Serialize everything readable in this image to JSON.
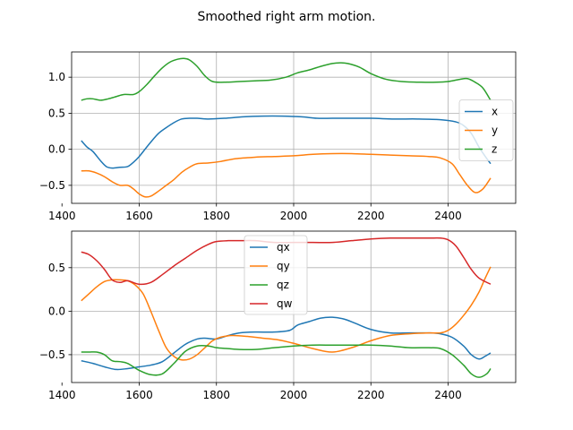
{
  "figure": {
    "title": "Smoothed right arm motion."
  },
  "chart_data": [
    {
      "type": "line",
      "title": "",
      "xlabel": "",
      "ylabel": "",
      "xlim": [
        1425,
        2575
      ],
      "ylim": [
        -0.75,
        1.35
      ],
      "xticks": [
        1400,
        1600,
        1800,
        2000,
        2200,
        2400
      ],
      "xtick_labels": [
        "1400",
        "1600",
        "1800",
        "2000",
        "2200",
        "2400"
      ],
      "yticks": [
        -0.5,
        0.0,
        0.5,
        1.0
      ],
      "ytick_labels": [
        "−0.5",
        "0.0",
        "0.5",
        "1.0"
      ],
      "grid": true,
      "legend_position": "center-right",
      "series": [
        {
          "name": "x",
          "color": "#1f77b4",
          "x": [
            1450,
            1465,
            1480,
            1500,
            1515,
            1530,
            1550,
            1570,
            1585,
            1600,
            1615,
            1630,
            1650,
            1670,
            1690,
            1710,
            1730,
            1750,
            1780,
            1820,
            1870,
            1920,
            1970,
            2020,
            2060,
            2100,
            2140,
            2200,
            2260,
            2320,
            2380,
            2420,
            2440,
            2460,
            2480,
            2495,
            2510
          ],
          "values": [
            0.12,
            0.03,
            -0.03,
            -0.16,
            -0.24,
            -0.26,
            -0.25,
            -0.24,
            -0.18,
            -0.1,
            0.0,
            0.1,
            0.22,
            0.3,
            0.37,
            0.42,
            0.43,
            0.43,
            0.42,
            0.43,
            0.45,
            0.46,
            0.46,
            0.45,
            0.43,
            0.43,
            0.43,
            0.43,
            0.42,
            0.42,
            0.41,
            0.38,
            0.33,
            0.22,
            0.03,
            -0.09,
            -0.2
          ]
        },
        {
          "name": "y",
          "color": "#ff7f0e",
          "x": [
            1450,
            1470,
            1490,
            1510,
            1530,
            1550,
            1570,
            1585,
            1600,
            1615,
            1630,
            1650,
            1670,
            1690,
            1710,
            1730,
            1750,
            1780,
            1810,
            1850,
            1900,
            1950,
            2000,
            2050,
            2100,
            2150,
            2200,
            2250,
            2300,
            2350,
            2380,
            2410,
            2430,
            2450,
            2470,
            2490,
            2510
          ],
          "values": [
            -0.3,
            -0.3,
            -0.33,
            -0.38,
            -0.45,
            -0.5,
            -0.5,
            -0.55,
            -0.62,
            -0.66,
            -0.65,
            -0.58,
            -0.5,
            -0.42,
            -0.32,
            -0.25,
            -0.2,
            -0.19,
            -0.17,
            -0.13,
            -0.11,
            -0.1,
            -0.09,
            -0.07,
            -0.06,
            -0.06,
            -0.07,
            -0.08,
            -0.09,
            -0.1,
            -0.12,
            -0.2,
            -0.35,
            -0.5,
            -0.6,
            -0.55,
            -0.4
          ]
        },
        {
          "name": "z",
          "color": "#2ca02c",
          "x": [
            1450,
            1465,
            1480,
            1500,
            1520,
            1540,
            1560,
            1585,
            1600,
            1620,
            1640,
            1660,
            1680,
            1700,
            1715,
            1730,
            1750,
            1770,
            1790,
            1820,
            1860,
            1900,
            1940,
            1980,
            2010,
            2040,
            2070,
            2100,
            2120,
            2140,
            2170,
            2200,
            2240,
            2280,
            2330,
            2370,
            2400,
            2430,
            2450,
            2470,
            2490,
            2510
          ],
          "values": [
            0.68,
            0.7,
            0.7,
            0.68,
            0.7,
            0.73,
            0.76,
            0.76,
            0.8,
            0.9,
            1.02,
            1.13,
            1.21,
            1.25,
            1.26,
            1.24,
            1.15,
            1.02,
            0.94,
            0.93,
            0.94,
            0.95,
            0.96,
            1.0,
            1.06,
            1.1,
            1.15,
            1.19,
            1.2,
            1.19,
            1.14,
            1.05,
            0.97,
            0.94,
            0.93,
            0.93,
            0.94,
            0.97,
            0.98,
            0.93,
            0.85,
            0.68
          ]
        }
      ]
    },
    {
      "type": "line",
      "title": "",
      "xlabel": "",
      "ylabel": "",
      "xlim": [
        1425,
        2575
      ],
      "ylim": [
        -0.82,
        0.92
      ],
      "xticks": [
        1400,
        1600,
        1800,
        2000,
        2200,
        2400
      ],
      "xtick_labels": [
        "1400",
        "1600",
        "1800",
        "2000",
        "2200",
        "2400"
      ],
      "yticks": [
        -0.5,
        0.0,
        0.5
      ],
      "ytick_labels": [
        "−0.5",
        "0.0",
        "0.5"
      ],
      "grid": true,
      "legend_position": "upper-center",
      "series": [
        {
          "name": "qx",
          "color": "#1f77b4",
          "x": [
            1450,
            1480,
            1510,
            1540,
            1570,
            1600,
            1630,
            1660,
            1690,
            1720,
            1750,
            1770,
            1800,
            1830,
            1860,
            1900,
            1950,
            1990,
            2010,
            2040,
            2070,
            2100,
            2130,
            2160,
            2200,
            2250,
            2300,
            2350,
            2380,
            2410,
            2440,
            2460,
            2480,
            2495,
            2510
          ],
          "values": [
            -0.57,
            -0.6,
            -0.64,
            -0.67,
            -0.66,
            -0.64,
            -0.62,
            -0.58,
            -0.48,
            -0.38,
            -0.32,
            -0.31,
            -0.32,
            -0.28,
            -0.25,
            -0.24,
            -0.24,
            -0.22,
            -0.16,
            -0.12,
            -0.08,
            -0.07,
            -0.09,
            -0.14,
            -0.21,
            -0.25,
            -0.25,
            -0.25,
            -0.26,
            -0.3,
            -0.4,
            -0.5,
            -0.55,
            -0.52,
            -0.48
          ]
        },
        {
          "name": "qy",
          "color": "#ff7f0e",
          "x": [
            1450,
            1470,
            1490,
            1510,
            1530,
            1550,
            1570,
            1590,
            1610,
            1630,
            1650,
            1670,
            1690,
            1710,
            1730,
            1750,
            1770,
            1790,
            1810,
            1840,
            1880,
            1920,
            1960,
            2000,
            2050,
            2100,
            2150,
            2200,
            2250,
            2300,
            2350,
            2380,
            2400,
            2420,
            2440,
            2460,
            2480,
            2495,
            2510
          ],
          "values": [
            0.12,
            0.2,
            0.28,
            0.34,
            0.36,
            0.36,
            0.35,
            0.3,
            0.2,
            0.0,
            -0.22,
            -0.42,
            -0.52,
            -0.56,
            -0.55,
            -0.5,
            -0.42,
            -0.34,
            -0.3,
            -0.28,
            -0.29,
            -0.31,
            -0.33,
            -0.37,
            -0.43,
            -0.47,
            -0.42,
            -0.34,
            -0.28,
            -0.26,
            -0.25,
            -0.25,
            -0.22,
            -0.15,
            -0.05,
            0.07,
            0.22,
            0.37,
            0.51
          ]
        },
        {
          "name": "qz",
          "color": "#2ca02c",
          "x": [
            1450,
            1470,
            1490,
            1510,
            1530,
            1550,
            1570,
            1600,
            1630,
            1660,
            1690,
            1720,
            1750,
            1780,
            1800,
            1830,
            1860,
            1900,
            1950,
            2000,
            2050,
            2100,
            2150,
            2200,
            2250,
            2300,
            2350,
            2380,
            2410,
            2440,
            2460,
            2480,
            2500,
            2510
          ],
          "values": [
            -0.47,
            -0.47,
            -0.47,
            -0.5,
            -0.57,
            -0.58,
            -0.6,
            -0.68,
            -0.73,
            -0.72,
            -0.6,
            -0.46,
            -0.4,
            -0.4,
            -0.42,
            -0.43,
            -0.44,
            -0.44,
            -0.42,
            -0.4,
            -0.39,
            -0.39,
            -0.39,
            -0.39,
            -0.4,
            -0.42,
            -0.42,
            -0.43,
            -0.5,
            -0.62,
            -0.72,
            -0.76,
            -0.72,
            -0.66
          ]
        },
        {
          "name": "qw",
          "color": "#d62728",
          "x": [
            1450,
            1470,
            1490,
            1510,
            1530,
            1550,
            1570,
            1600,
            1630,
            1660,
            1690,
            1720,
            1750,
            1780,
            1800,
            1830,
            1860,
            1900,
            1950,
            2000,
            2050,
            2100,
            2150,
            2200,
            2250,
            2300,
            2350,
            2380,
            2400,
            2420,
            2440,
            2460,
            2480,
            2510
          ],
          "values": [
            0.68,
            0.65,
            0.58,
            0.48,
            0.36,
            0.33,
            0.35,
            0.31,
            0.33,
            0.42,
            0.52,
            0.61,
            0.7,
            0.77,
            0.8,
            0.81,
            0.81,
            0.81,
            0.79,
            0.79,
            0.79,
            0.79,
            0.81,
            0.83,
            0.84,
            0.84,
            0.84,
            0.84,
            0.82,
            0.75,
            0.62,
            0.48,
            0.38,
            0.31
          ]
        }
      ]
    }
  ]
}
